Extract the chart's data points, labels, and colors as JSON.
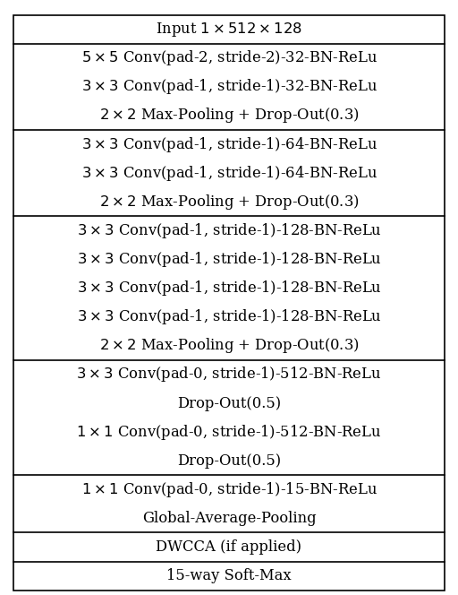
{
  "title": "Input $1 \\times 512 \\times 128$",
  "sections": [
    {
      "rows": [
        "$5 \\times 5$ Conv(pad-2, stride-2)-32-BN-ReLu",
        "$3 \\times 3$ Conv(pad-1, stride-1)-32-BN-ReLu",
        "$2 \\times 2$ Max-Pooling + Drop-Out(0.3)"
      ]
    },
    {
      "rows": [
        "$3 \\times 3$ Conv(pad-1, stride-1)-64-BN-ReLu",
        "$3 \\times 3$ Conv(pad-1, stride-1)-64-BN-ReLu",
        "$2 \\times 2$ Max-Pooling + Drop-Out(0.3)"
      ]
    },
    {
      "rows": [
        "$3 \\times 3$ Conv(pad-1, stride-1)-128-BN-ReLu",
        "$3 \\times 3$ Conv(pad-1, stride-1)-128-BN-ReLu",
        "$3 \\times 3$ Conv(pad-1, stride-1)-128-BN-ReLu",
        "$3 \\times 3$ Conv(pad-1, stride-1)-128-BN-ReLu",
        "$2 \\times 2$ Max-Pooling + Drop-Out(0.3)"
      ]
    },
    {
      "rows": [
        "$3 \\times 3$ Conv(pad-0, stride-1)-512-BN-ReLu",
        "Drop-Out(0.5)",
        "$1 \\times 1$ Conv(pad-0, stride-1)-512-BN-ReLu",
        "Drop-Out(0.5)"
      ]
    },
    {
      "rows": [
        "$1 \\times 1$ Conv(pad-0, stride-1)-15-BN-ReLu",
        "Global-Average-Pooling"
      ]
    }
  ],
  "bottom_rows": [
    "DWCCA (if applied)",
    "15-way Soft-Max"
  ],
  "bg_color": "#ffffff",
  "text_color": "#000000",
  "border_color": "#000000",
  "font_size": 11.8,
  "figwidth": 5.12,
  "figheight": 6.64,
  "dpi": 100
}
